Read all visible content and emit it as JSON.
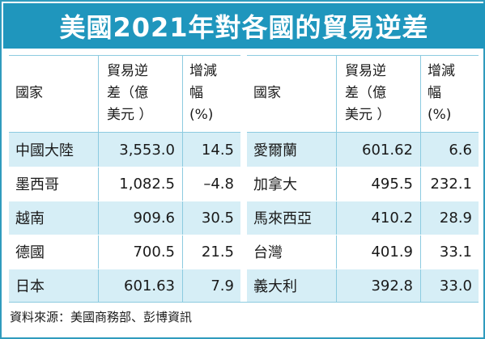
{
  "title": "美國2021年對各國的貿易逆差",
  "headers": {
    "country": "國家",
    "deficit_lines": [
      "貿易逆",
      "差（億",
      "美元 ）"
    ],
    "change_lines": [
      "增減",
      "幅",
      "(%)"
    ]
  },
  "left_rows": [
    {
      "country": "中國大陸",
      "deficit": "3,553.0",
      "change": "14.5"
    },
    {
      "country": "墨西哥",
      "deficit": "1,082.5",
      "change": "–4.8"
    },
    {
      "country": "越南",
      "deficit": "909.6",
      "change": "30.5"
    },
    {
      "country": "德國",
      "deficit": "700.5",
      "change": "21.5"
    },
    {
      "country": "日本",
      "deficit": "601.63",
      "change": "7.9"
    }
  ],
  "right_rows": [
    {
      "country": "愛爾蘭",
      "deficit": "601.62",
      "change": "6.6"
    },
    {
      "country": "加拿大",
      "deficit": "495.5",
      "change": "232.1"
    },
    {
      "country": "馬來西亞",
      "deficit": "410.2",
      "change": "28.9"
    },
    {
      "country": "台灣",
      "deficit": "401.9",
      "change": "33.1"
    },
    {
      "country": "義大利",
      "deficit": "392.8",
      "change": "33.0"
    }
  ],
  "source": "資料來源：美國商務部、彭博資訊",
  "colors": {
    "title_bg": "#1f96bd",
    "shade": "#d6eef6",
    "rule": "#8ccbe0"
  }
}
